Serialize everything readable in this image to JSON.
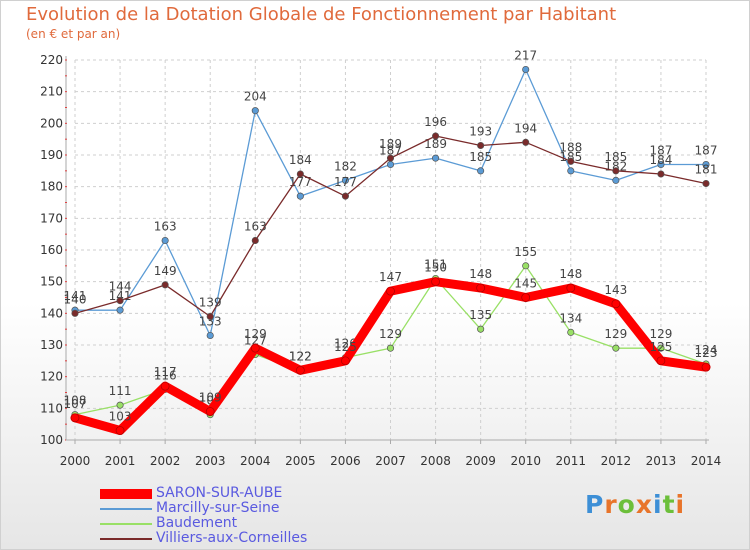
{
  "chart_data": {
    "type": "line",
    "title": "Evolution de la Dotation Globale de Fonctionnement par Habitant",
    "subtitle": "(en € et par an)",
    "xlabel": "",
    "ylabel": "",
    "ylim": [
      100,
      220
    ],
    "yticks": [
      100,
      110,
      120,
      130,
      140,
      150,
      160,
      170,
      180,
      190,
      200,
      210,
      220
    ],
    "categories": [
      "2000",
      "2001",
      "2002",
      "2003",
      "2004",
      "2005",
      "2006",
      "2007",
      "2008",
      "2009",
      "2010",
      "2011",
      "2012",
      "2013",
      "2014"
    ],
    "series": [
      {
        "name": "SARON-SUR-AUBE",
        "color": "#ff0000",
        "values": [
          107,
          103,
          117,
          109,
          129,
          122,
          125,
          147,
          150,
          148,
          145,
          148,
          143,
          125,
          123
        ]
      },
      {
        "name": "Marcilly-sur-Seine",
        "color": "#5b9bd5",
        "values": [
          141,
          141,
          163,
          133,
          204,
          177,
          182,
          187,
          189,
          185,
          217,
          185,
          182,
          187,
          187
        ]
      },
      {
        "name": "Baudement",
        "color": "#99e066",
        "values": [
          108,
          111,
          116,
          108,
          127,
          122,
          126,
          129,
          151,
          135,
          155,
          134,
          129,
          129,
          124
        ]
      },
      {
        "name": "Villiers-aux-Corneilles",
        "color": "#7a2b2b",
        "values": [
          140,
          144,
          149,
          139,
          163,
          184,
          177,
          189,
          196,
          193,
          194,
          188,
          185,
          184,
          181
        ]
      }
    ],
    "legend_position": "bottom-left"
  },
  "logo": {
    "text": "Proxiti",
    "colors": [
      "#3d8fd6",
      "#e8742a",
      "#6cbf3a",
      "#e8742a",
      "#3d8fd6",
      "#6cbf3a",
      "#e8742a"
    ]
  }
}
